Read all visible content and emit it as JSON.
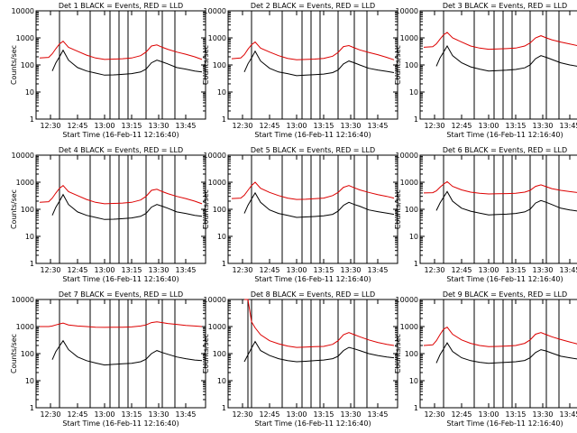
{
  "figure": {
    "colors": {
      "events": "#000000",
      "lld": "#dd0000",
      "axis": "#000000",
      "background": "#ffffff"
    }
  },
  "chart_data": [
    {
      "type": "line",
      "title": "Det 1 BLACK = Events, RED = LLD",
      "xlabel": "Start Time (16-Feb-11 12:16:40)",
      "ylabel": "Counts/sec",
      "x_tick_labels": [
        "12:30",
        "12:45",
        "13:00",
        "13:15",
        "13:30",
        "13:45"
      ],
      "y_tick_labels": [
        "1",
        "10",
        "100",
        "1000",
        "10000"
      ],
      "y_scale": "log",
      "ylim": [
        1,
        10000
      ],
      "x": [
        "12:24",
        "12:29",
        "12:31",
        "12:33",
        "12:35",
        "12:37",
        "12:40",
        "12:45",
        "12:50",
        "12:55",
        "13:00",
        "13:05",
        "13:10",
        "13:15",
        "13:20",
        "13:23",
        "13:26",
        "13:29",
        "13:32",
        "13:35",
        "13:40",
        "13:45",
        "13:50",
        "13:54"
      ],
      "series": [
        {
          "name": "Events",
          "values": [
            null,
            null,
            60,
            120,
            200,
            350,
            150,
            80,
            60,
            50,
            42,
            43,
            45,
            48,
            55,
            70,
            120,
            150,
            130,
            110,
            80,
            70,
            60,
            55
          ]
        },
        {
          "name": "LLD",
          "values": [
            180,
            190,
            260,
            400,
            600,
            750,
            450,
            320,
            230,
            180,
            160,
            165,
            170,
            180,
            220,
            300,
            500,
            550,
            450,
            380,
            300,
            250,
            200,
            160
          ]
        }
      ],
      "vertical_markers": [
        "12:35",
        "12:52",
        "13:03",
        "13:08",
        "13:13",
        "13:23",
        "13:32",
        "13:39"
      ]
    },
    {
      "type": "line",
      "title": "Det 2 BLACK = Events, RED = LLD",
      "xlabel": "Start Time (16-Feb-11 12:16:40)",
      "ylabel": "Counts/sec",
      "x_tick_labels": [
        "12:30",
        "12:45",
        "13:00",
        "13:15",
        "13:30",
        "13:45"
      ],
      "y_tick_labels": [
        "1",
        "10",
        "100",
        "1000",
        "10000"
      ],
      "y_scale": "log",
      "ylim": [
        1,
        10000
      ],
      "x": [
        "12:24",
        "12:29",
        "12:31",
        "12:33",
        "12:35",
        "12:37",
        "12:40",
        "12:45",
        "12:50",
        "12:55",
        "13:00",
        "13:05",
        "13:10",
        "13:15",
        "13:20",
        "13:23",
        "13:26",
        "13:29",
        "13:32",
        "13:35",
        "13:40",
        "13:45",
        "13:50",
        "13:54"
      ],
      "series": [
        {
          "name": "Events",
          "values": [
            null,
            null,
            55,
            110,
            180,
            320,
            140,
            75,
            55,
            48,
            40,
            42,
            44,
            46,
            52,
            65,
            110,
            140,
            120,
            100,
            75,
            65,
            58,
            52
          ]
        },
        {
          "name": "LLD",
          "values": [
            170,
            180,
            240,
            380,
            560,
            700,
            420,
            300,
            220,
            175,
            155,
            160,
            165,
            175,
            210,
            290,
            480,
            520,
            430,
            360,
            290,
            240,
            190,
            155
          ]
        }
      ],
      "vertical_markers": [
        "12:35",
        "12:52",
        "13:03",
        "13:08",
        "13:13",
        "13:23",
        "13:32",
        "13:39"
      ]
    },
    {
      "type": "line",
      "title": "Det 3 BLACK = Events, RED = LLD",
      "xlabel": "Start Time (16-Feb-11 12:16:40)",
      "ylabel": "Counts/sec",
      "x_tick_labels": [
        "12:30",
        "12:45",
        "13:00",
        "13:15",
        "13:30",
        "13:45"
      ],
      "y_tick_labels": [
        "1",
        "10",
        "100",
        "1000",
        "10000"
      ],
      "y_scale": "log",
      "ylim": [
        1,
        10000
      ],
      "x": [
        "12:24",
        "12:29",
        "12:31",
        "12:33",
        "12:35",
        "12:37",
        "12:40",
        "12:45",
        "12:50",
        "12:55",
        "13:00",
        "13:05",
        "13:10",
        "13:15",
        "13:20",
        "13:23",
        "13:26",
        "13:29",
        "13:32",
        "13:35",
        "13:40",
        "13:45",
        "13:50",
        "13:54"
      ],
      "series": [
        {
          "name": "Events",
          "values": [
            null,
            null,
            90,
            180,
            300,
            500,
            220,
            120,
            85,
            70,
            60,
            62,
            64,
            68,
            78,
            100,
            170,
            220,
            190,
            160,
            120,
            100,
            88,
            80
          ]
        },
        {
          "name": "LLD",
          "values": [
            450,
            470,
            600,
            900,
            1300,
            1600,
            1000,
            700,
            500,
            420,
            380,
            390,
            400,
            420,
            500,
            650,
            1000,
            1200,
            1000,
            850,
            700,
            600,
            500,
            420
          ]
        }
      ],
      "vertical_markers": [
        "12:35",
        "12:52",
        "13:03",
        "13:08",
        "13:13",
        "13:23",
        "13:32",
        "13:39"
      ]
    },
    {
      "type": "line",
      "title": "Det 4 BLACK = Events, RED = LLD",
      "xlabel": "Start Time (16-Feb-11 12:16:40)",
      "ylabel": "Counts/sec",
      "x_tick_labels": [
        "12:30",
        "12:45",
        "13:00",
        "13:15",
        "13:30",
        "13:45"
      ],
      "y_tick_labels": [
        "1",
        "10",
        "100",
        "1000",
        "10000"
      ],
      "y_scale": "log",
      "ylim": [
        1,
        10000
      ],
      "x": [
        "12:24",
        "12:29",
        "12:31",
        "12:33",
        "12:35",
        "12:37",
        "12:40",
        "12:45",
        "12:50",
        "12:55",
        "13:00",
        "13:05",
        "13:10",
        "13:15",
        "13:20",
        "13:23",
        "13:26",
        "13:29",
        "13:32",
        "13:35",
        "13:40",
        "13:45",
        "13:50",
        "13:54"
      ],
      "series": [
        {
          "name": "Events",
          "values": [
            null,
            null,
            60,
            120,
            200,
            350,
            150,
            80,
            60,
            50,
            42,
            43,
            45,
            48,
            55,
            70,
            120,
            150,
            130,
            110,
            80,
            70,
            60,
            55
          ]
        },
        {
          "name": "LLD",
          "values": [
            180,
            190,
            260,
            400,
            600,
            750,
            450,
            320,
            230,
            180,
            160,
            165,
            170,
            180,
            220,
            300,
            500,
            550,
            450,
            380,
            300,
            250,
            200,
            160
          ]
        }
      ],
      "vertical_markers": [
        "12:35",
        "12:52",
        "13:03",
        "13:08",
        "13:13",
        "13:23",
        "13:32",
        "13:39"
      ]
    },
    {
      "type": "line",
      "title": "Det 5 BLACK = Events, RED = LLD",
      "xlabel": "Start Time (16-Feb-11 12:16:40)",
      "ylabel": "Counts/sec",
      "x_tick_labels": [
        "12:30",
        "12:45",
        "13:00",
        "13:15",
        "13:30",
        "13:45"
      ],
      "y_tick_labels": [
        "1",
        "10",
        "100",
        "1000",
        "10000"
      ],
      "y_scale": "log",
      "ylim": [
        1,
        10000
      ],
      "x": [
        "12:24",
        "12:29",
        "12:31",
        "12:33",
        "12:35",
        "12:37",
        "12:40",
        "12:45",
        "12:50",
        "12:55",
        "13:00",
        "13:05",
        "13:10",
        "13:15",
        "13:20",
        "13:23",
        "13:26",
        "13:29",
        "13:32",
        "13:35",
        "13:40",
        "13:45",
        "13:50",
        "13:54"
      ],
      "series": [
        {
          "name": "Events",
          "values": [
            null,
            null,
            70,
            140,
            240,
            400,
            180,
            95,
            70,
            60,
            50,
            52,
            54,
            57,
            65,
            85,
            140,
            180,
            150,
            130,
            95,
            82,
            72,
            65
          ]
        },
        {
          "name": "LLD",
          "values": [
            250,
            260,
            330,
            500,
            750,
            1000,
            600,
            420,
            320,
            260,
            230,
            235,
            245,
            260,
            320,
            420,
            650,
            750,
            620,
            520,
            420,
            350,
            300,
            260
          ]
        }
      ],
      "vertical_markers": [
        "12:35",
        "12:52",
        "13:03",
        "13:08",
        "13:13",
        "13:23",
        "13:32",
        "13:39"
      ]
    },
    {
      "type": "line",
      "title": "Det 6 BLACK = Events, RED = LLD",
      "xlabel": "Start Time (16-Feb-11 12:16:40)",
      "ylabel": "Counts/sec",
      "x_tick_labels": [
        "12:30",
        "12:45",
        "13:00",
        "13:15",
        "13:30",
        "13:45"
      ],
      "y_tick_labels": [
        "1",
        "10",
        "100",
        "1000",
        "10000"
      ],
      "y_scale": "log",
      "ylim": [
        1,
        10000
      ],
      "x": [
        "12:24",
        "12:29",
        "12:31",
        "12:33",
        "12:35",
        "12:37",
        "12:40",
        "12:45",
        "12:50",
        "12:55",
        "13:00",
        "13:05",
        "13:10",
        "13:15",
        "13:20",
        "13:23",
        "13:26",
        "13:29",
        "13:32",
        "13:35",
        "13:40",
        "13:45",
        "13:50",
        "13:54"
      ],
      "series": [
        {
          "name": "Events",
          "values": [
            null,
            null,
            90,
            170,
            280,
            450,
            200,
            110,
            85,
            72,
            62,
            64,
            66,
            70,
            80,
            100,
            170,
            210,
            180,
            150,
            110,
            95,
            85,
            78
          ]
        },
        {
          "name": "LLD",
          "values": [
            400,
            410,
            480,
            650,
            850,
            1050,
            700,
            520,
            430,
            390,
            370,
            375,
            380,
            390,
            430,
            500,
            700,
            800,
            680,
            580,
            500,
            450,
            410,
            380
          ]
        }
      ],
      "vertical_markers": [
        "12:35",
        "12:52",
        "13:03",
        "13:08",
        "13:13",
        "13:23",
        "13:32",
        "13:39"
      ]
    },
    {
      "type": "line",
      "title": "Det 7 BLACK = Events, RED = LLD",
      "xlabel": "Start Time (16-Feb-11 12:16:40)",
      "ylabel": "Counts/sec",
      "x_tick_labels": [
        "12:30",
        "12:45",
        "13:00",
        "13:15",
        "13:30",
        "13:45"
      ],
      "y_tick_labels": [
        "1",
        "10",
        "100",
        "1000",
        "10000"
      ],
      "y_scale": "log",
      "ylim": [
        1,
        10000
      ],
      "x": [
        "12:24",
        "12:29",
        "12:31",
        "12:33",
        "12:35",
        "12:37",
        "12:40",
        "12:45",
        "12:50",
        "12:55",
        "13:00",
        "13:05",
        "13:10",
        "13:15",
        "13:20",
        "13:23",
        "13:26",
        "13:29",
        "13:32",
        "13:35",
        "13:40",
        "13:45",
        "13:50",
        "13:54"
      ],
      "series": [
        {
          "name": "Events",
          "values": [
            null,
            null,
            60,
            120,
            190,
            300,
            140,
            75,
            55,
            45,
            38,
            40,
            42,
            44,
            50,
            62,
            100,
            130,
            110,
            95,
            75,
            65,
            58,
            55
          ]
        },
        {
          "name": "LLD",
          "values": [
            1000,
            1000,
            1050,
            1150,
            1250,
            1350,
            1150,
            1050,
            1000,
            950,
            930,
            940,
            950,
            970,
            1050,
            1150,
            1400,
            1500,
            1400,
            1300,
            1200,
            1100,
            1050,
            1000
          ]
        }
      ],
      "vertical_markers": [
        "12:35",
        "12:52",
        "13:03",
        "13:08",
        "13:13",
        "13:23",
        "13:32",
        "13:39"
      ]
    },
    {
      "type": "line",
      "title": "Det 8 BLACK = Events, RED = LLD",
      "xlabel": "Start Time (16-Feb-11 12:16:40)",
      "ylabel": "Counts/sec",
      "x_tick_labels": [
        "12:30",
        "12:45",
        "13:00",
        "13:15",
        "13:30",
        "13:45"
      ],
      "y_tick_labels": [
        "1",
        "10",
        "100",
        "1000",
        "10000"
      ],
      "y_scale": "log",
      "ylim": [
        1,
        10000
      ],
      "x": [
        "12:24",
        "12:29",
        "12:31",
        "12:33",
        "12:35",
        "12:37",
        "12:40",
        "12:45",
        "12:50",
        "12:55",
        "13:00",
        "13:05",
        "13:10",
        "13:15",
        "13:20",
        "13:23",
        "13:26",
        "13:29",
        "13:32",
        "13:35",
        "13:40",
        "13:45",
        "13:50",
        "13:54"
      ],
      "series": [
        {
          "name": "Events",
          "values": [
            null,
            null,
            50,
            90,
            160,
            280,
            130,
            85,
            65,
            55,
            50,
            52,
            55,
            58,
            65,
            80,
            130,
            170,
            150,
            130,
            100,
            85,
            75,
            70
          ]
        },
        {
          "name": "LLD",
          "values": [
            null,
            null,
            10000,
            10000,
            1500,
            900,
            500,
            300,
            230,
            190,
            170,
            175,
            180,
            185,
            220,
            300,
            500,
            600,
            500,
            420,
            320,
            260,
            220,
            200
          ]
        }
      ],
      "vertical_markers": [
        "12:33",
        "12:35",
        "12:52",
        "13:03",
        "13:08",
        "13:13",
        "13:23",
        "13:32",
        "13:39"
      ]
    },
    {
      "type": "line",
      "title": "Det 9 BLACK = Events, RED = LLD",
      "xlabel": "Start Time (16-Feb-11 12:16:40)",
      "ylabel": "Counts/sec",
      "x_tick_labels": [
        "12:30",
        "12:45",
        "13:00",
        "13:15",
        "13:30",
        "13:45"
      ],
      "y_tick_labels": [
        "1",
        "10",
        "100",
        "1000",
        "10000"
      ],
      "y_scale": "log",
      "ylim": [
        1,
        10000
      ],
      "x": [
        "12:24",
        "12:29",
        "12:31",
        "12:33",
        "12:35",
        "12:37",
        "12:40",
        "12:45",
        "12:50",
        "12:55",
        "13:00",
        "13:05",
        "13:10",
        "13:15",
        "13:20",
        "13:23",
        "13:26",
        "13:29",
        "13:32",
        "13:35",
        "13:40",
        "13:45",
        "13:50",
        "13:54"
      ],
      "series": [
        {
          "name": "Events",
          "values": [
            null,
            null,
            45,
            90,
            150,
            250,
            120,
            70,
            55,
            48,
            44,
            46,
            48,
            50,
            56,
            70,
            110,
            140,
            125,
            105,
            80,
            70,
            62,
            58
          ]
        },
        {
          "name": "LLD",
          "values": [
            200,
            210,
            300,
            500,
            800,
            950,
            520,
            320,
            240,
            200,
            180,
            185,
            190,
            200,
            240,
            320,
            520,
            600,
            500,
            420,
            330,
            270,
            220,
            190
          ]
        }
      ],
      "vertical_markers": [
        "12:35",
        "12:52",
        "13:03",
        "13:08",
        "13:13",
        "13:23",
        "13:32",
        "13:39"
      ]
    }
  ]
}
